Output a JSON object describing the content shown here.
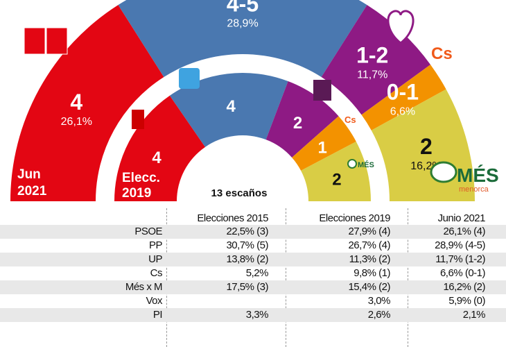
{
  "chart_data": {
    "type": "hemicycle",
    "title": "",
    "total_label": "13 escaños",
    "rings": [
      {
        "name": "Jun 2021",
        "label_lines": [
          "Jun",
          "2021"
        ],
        "segments": [
          {
            "party": "PSOE",
            "seats_label": "4",
            "seats": 4,
            "pct": "26,1%",
            "color": "#e30613",
            "text": "#fff"
          },
          {
            "party": "PP",
            "seats_label": "4-5",
            "seats": 4.5,
            "pct": "28,9%",
            "color": "#4a78b0",
            "text": "#fff"
          },
          {
            "party": "UP",
            "seats_label": "1-2",
            "seats": 1.5,
            "pct": "11,7%",
            "color": "#8e1a84",
            "text": "#fff"
          },
          {
            "party": "Cs",
            "seats_label": "0-1",
            "seats": 0.5,
            "pct": "6,6%",
            "color": "#f39200",
            "text": "#fff"
          },
          {
            "party": "Més x M",
            "seats_label": "2",
            "seats": 2,
            "pct": "16,2%",
            "color": "#d9cd45",
            "text": "#111"
          }
        ]
      },
      {
        "name": "Elecc. 2019",
        "label_lines": [
          "Elecc.",
          "2019"
        ],
        "segments": [
          {
            "party": "PSOE",
            "seats_label": "4",
            "seats": 4,
            "color": "#e30613",
            "text": "#fff"
          },
          {
            "party": "PP",
            "seats_label": "4",
            "seats": 4,
            "color": "#4a78b0",
            "text": "#fff"
          },
          {
            "party": "UP",
            "seats_label": "2",
            "seats": 2,
            "color": "#8e1a84",
            "text": "#fff"
          },
          {
            "party": "Cs",
            "seats_label": "1",
            "seats": 1,
            "color": "#f39200",
            "text": "#fff"
          },
          {
            "party": "Més x M",
            "seats_label": "2",
            "seats": 2,
            "color": "#d9cd45",
            "text": "#111"
          }
        ]
      }
    ],
    "logos": {
      "cs": "Cs",
      "mes": "MÉS",
      "mes_sub": "menorca"
    }
  },
  "table": {
    "headers": [
      "",
      "Elecciones 2015",
      "Elecciones 2019",
      "Junio 2021"
    ],
    "rows": [
      [
        "PSOE",
        "22,5% (3)",
        "27,9% (4)",
        "26,1% (4)"
      ],
      [
        "PP",
        "30,7% (5)",
        "26,7% (4)",
        "28,9% (4-5)"
      ],
      [
        "UP",
        "13,8% (2)",
        "11,3% (2)",
        "11,7% (1-2)"
      ],
      [
        "Cs",
        "5,2%",
        "9,8% (1)",
        "6,6% (0-1)"
      ],
      [
        "Més x M",
        "17,5% (3)",
        "15,4% (2)",
        "16,2% (2)"
      ],
      [
        "Vox",
        "",
        "3,0%",
        "5,9% (0)"
      ],
      [
        "PI",
        "3,3%",
        "2,6%",
        "2,1%"
      ]
    ]
  }
}
